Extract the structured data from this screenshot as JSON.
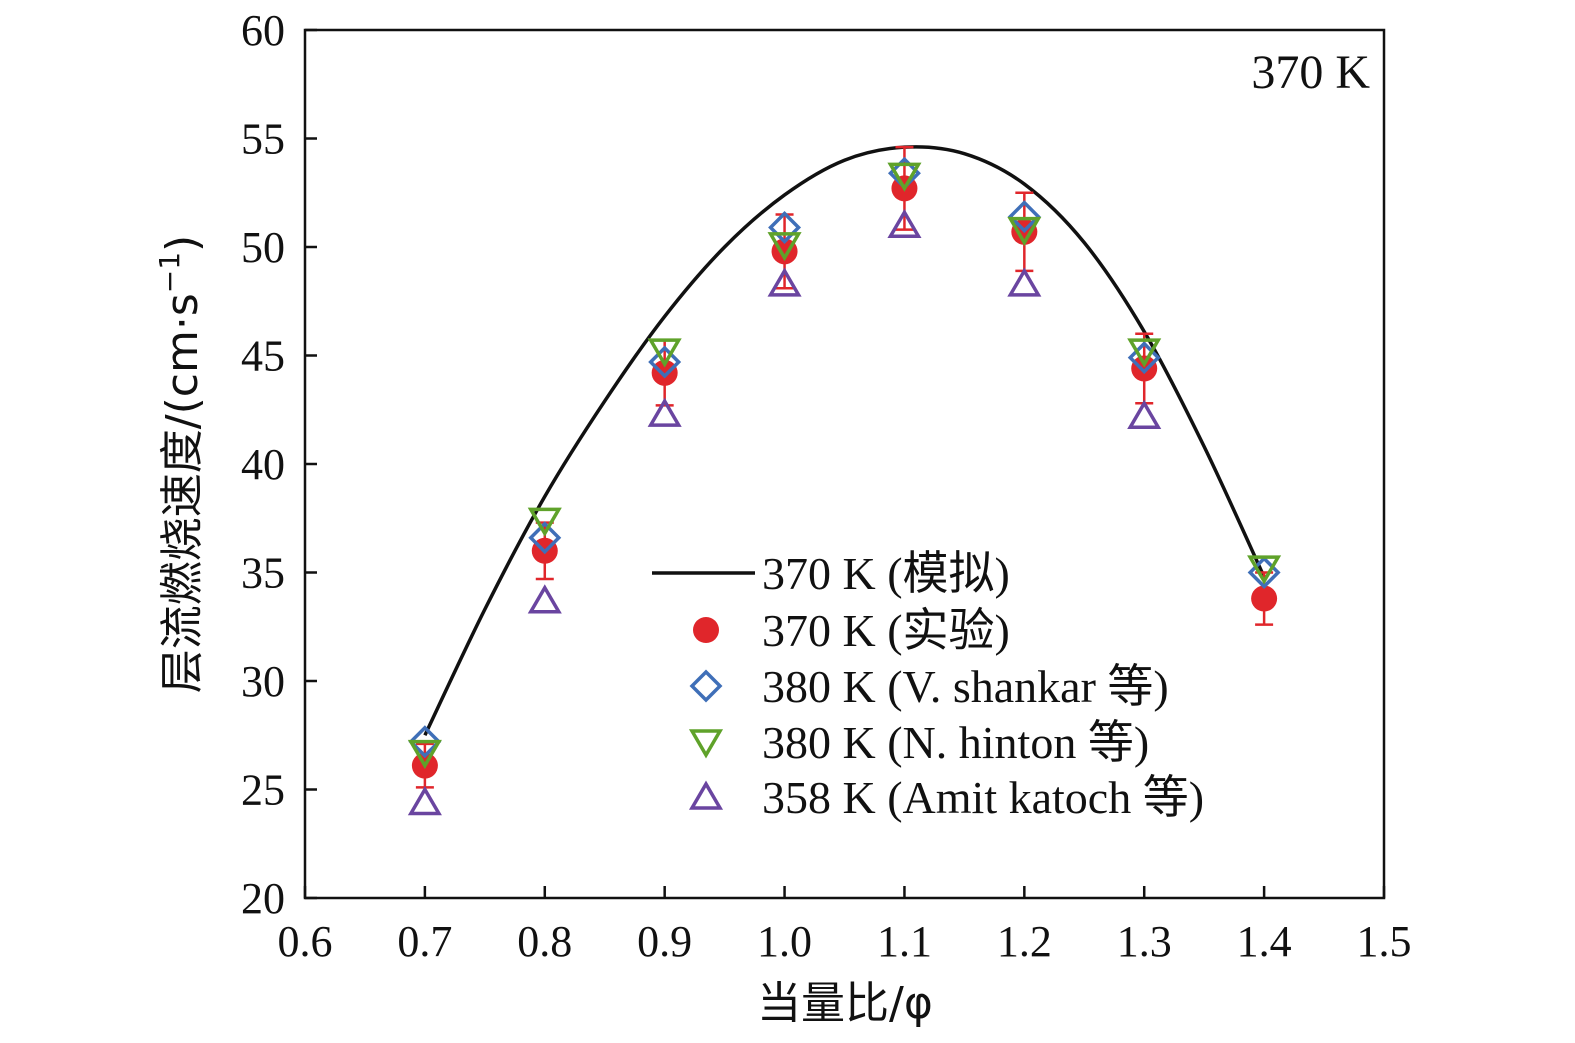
{
  "chart_data": {
    "type": "scatter",
    "annotation": "370 K",
    "xlabel": "当量比/φ",
    "ylabel_main": "层流燃烧速度/(cm·s",
    "ylabel_sup": "−1",
    "ylabel_close": ")",
    "xlim": [
      0.6,
      1.5
    ],
    "ylim": [
      20,
      60
    ],
    "xticks": [
      "0.6",
      "0.7",
      "0.8",
      "0.9",
      "1.0",
      "1.1",
      "1.2",
      "1.3",
      "1.4",
      "1.5"
    ],
    "yticks": [
      "20",
      "25",
      "30",
      "35",
      "40",
      "45",
      "50",
      "55",
      "60"
    ],
    "grid": false,
    "legend_position": "lower-center",
    "colors": {
      "sim": "#111111",
      "exp": "#e0262b",
      "shankar": "#3f6fb8",
      "hinton": "#5fa22a",
      "katoch": "#6a45a0"
    },
    "series": [
      {
        "name": "370 K (模拟)",
        "style": "line",
        "x": [
          0.7,
          0.75,
          0.8,
          0.85,
          0.9,
          0.95,
          1.0,
          1.05,
          1.1,
          1.15,
          1.2,
          1.25,
          1.3,
          1.35,
          1.4
        ],
        "y": [
          27.5,
          33.3,
          38.5,
          42.9,
          46.8,
          50.0,
          52.4,
          54.0,
          54.6,
          54.3,
          52.9,
          50.2,
          46.1,
          40.8,
          34.8
        ]
      },
      {
        "name": "370 K (实验)",
        "style": "filled-circle",
        "x": [
          0.7,
          0.8,
          0.9,
          1.0,
          1.1,
          1.2,
          1.3,
          1.4
        ],
        "y": [
          26.1,
          36.0,
          44.2,
          49.8,
          52.7,
          50.7,
          44.4,
          33.8
        ],
        "err": [
          1.0,
          1.3,
          1.5,
          1.7,
          1.9,
          1.8,
          1.6,
          1.2
        ]
      },
      {
        "name": "380 K (V. shankar 等)",
        "style": "diamond",
        "x": [
          0.7,
          0.8,
          0.9,
          1.0,
          1.1,
          1.2,
          1.3,
          1.4
        ],
        "y": [
          27.2,
          36.6,
          44.7,
          50.9,
          53.4,
          51.4,
          44.9,
          35.0
        ]
      },
      {
        "name": "380 K (N. hinton 等)",
        "style": "triangle-down",
        "x": [
          0.7,
          0.8,
          0.9,
          1.0,
          1.1,
          1.2,
          1.3,
          1.4
        ],
        "y": [
          26.7,
          37.4,
          45.2,
          50.1,
          53.3,
          50.8,
          45.2,
          35.2
        ]
      },
      {
        "name": "358 K (Amit katoch 等)",
        "style": "triangle-up",
        "x": [
          0.7,
          0.8,
          0.9,
          1.0,
          1.1,
          1.2,
          1.3,
          1.4
        ],
        "y": [
          24.4,
          33.7,
          42.3,
          48.3,
          51.0,
          48.3,
          42.2,
          null
        ]
      }
    ]
  }
}
